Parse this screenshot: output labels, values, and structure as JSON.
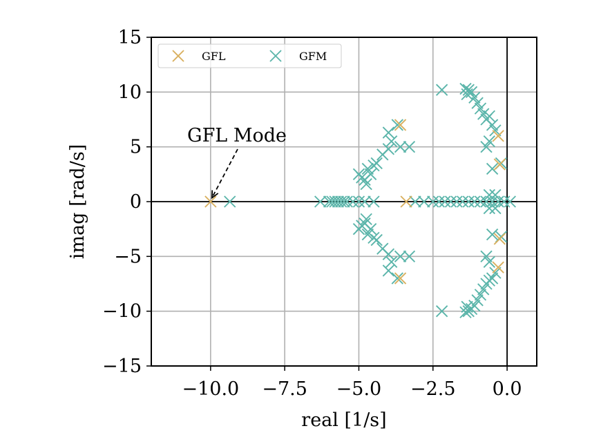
{
  "chart_data": {
    "type": "scatter",
    "xlabel": "real [1/s]",
    "ylabel": "imag [rad/s]",
    "xlim": [
      -12,
      1
    ],
    "ylim": [
      -15,
      15
    ],
    "xticks": [
      -10.0,
      -7.5,
      -5.0,
      -2.5,
      0.0
    ],
    "xtick_labels": [
      "−10.0",
      "−7.5",
      "−5.0",
      "−2.5",
      "0.0"
    ],
    "yticks": [
      15,
      10,
      5,
      0,
      -5,
      -10,
      -15
    ],
    "ytick_labels": [
      "15",
      "10",
      "5",
      "0",
      "−5",
      "−10",
      "−15"
    ],
    "grid": true,
    "legend_position": "top-left",
    "legend_columns": 2,
    "marker": "x",
    "series": [
      {
        "name": "GFL",
        "color": "#D9B05F",
        "points": [
          [
            -10.0,
            0.0
          ],
          [
            -3.6,
            7.0
          ],
          [
            -3.6,
            -7.0
          ],
          [
            -3.4,
            0.0
          ],
          [
            -0.25,
            3.4
          ],
          [
            -0.25,
            -3.4
          ],
          [
            -0.3,
            6.0
          ],
          [
            -0.3,
            -6.0
          ]
        ]
      },
      {
        "name": "GFM",
        "color": "#5BB5AA",
        "points": [
          [
            -9.35,
            0.0
          ],
          [
            -6.3,
            0.0
          ],
          [
            -6.0,
            0.0
          ],
          [
            -5.9,
            0.0
          ],
          [
            -5.8,
            0.0
          ],
          [
            -5.7,
            0.0
          ],
          [
            -5.6,
            0.0
          ],
          [
            -5.5,
            0.0
          ],
          [
            -5.4,
            0.0
          ],
          [
            -5.2,
            0.0
          ],
          [
            -5.0,
            0.0
          ],
          [
            -4.8,
            0.0
          ],
          [
            -4.5,
            0.0
          ],
          [
            -5.0,
            2.5
          ],
          [
            -4.9,
            2.2
          ],
          [
            -4.8,
            2.0
          ],
          [
            -4.75,
            1.6
          ],
          [
            -4.7,
            3.0
          ],
          [
            -4.6,
            2.5
          ],
          [
            -4.5,
            3.3
          ],
          [
            -4.4,
            3.5
          ],
          [
            -5.0,
            -2.5
          ],
          [
            -4.9,
            -2.2
          ],
          [
            -4.8,
            -2.0
          ],
          [
            -4.75,
            -1.6
          ],
          [
            -4.7,
            -3.0
          ],
          [
            -4.6,
            -2.5
          ],
          [
            -4.5,
            -3.3
          ],
          [
            -4.4,
            -3.5
          ],
          [
            -4.2,
            4.3
          ],
          [
            -4.0,
            4.8
          ],
          [
            -3.9,
            5.5
          ],
          [
            -4.0,
            6.3
          ],
          [
            -3.6,
            5.0
          ],
          [
            -3.3,
            5.0
          ],
          [
            -3.7,
            7.0
          ],
          [
            -4.2,
            -4.3
          ],
          [
            -4.0,
            -4.8
          ],
          [
            -3.9,
            -5.5
          ],
          [
            -4.0,
            -6.3
          ],
          [
            -3.6,
            -5.0
          ],
          [
            -3.3,
            -5.0
          ],
          [
            -3.7,
            -7.0
          ],
          [
            -3.1,
            0.0
          ],
          [
            -2.8,
            0.0
          ],
          [
            -2.5,
            0.0
          ],
          [
            -2.3,
            0.0
          ],
          [
            -2.1,
            0.0
          ],
          [
            -1.9,
            0.0
          ],
          [
            -1.7,
            0.0
          ],
          [
            -1.5,
            0.0
          ],
          [
            -1.3,
            0.0
          ],
          [
            -1.1,
            0.0
          ],
          [
            -0.9,
            0.0
          ],
          [
            -0.7,
            0.0
          ],
          [
            -0.5,
            0.0
          ],
          [
            -0.3,
            0.0
          ],
          [
            -0.1,
            0.0
          ],
          [
            0.1,
            0.0
          ],
          [
            -2.2,
            10.2
          ],
          [
            -1.4,
            10.3
          ],
          [
            -1.3,
            10.2
          ],
          [
            -1.2,
            10.0
          ],
          [
            -1.35,
            9.8
          ],
          [
            -1.1,
            9.5
          ],
          [
            -1.0,
            9.0
          ],
          [
            -0.9,
            8.5
          ],
          [
            -0.8,
            8.0
          ],
          [
            -0.7,
            7.5
          ],
          [
            -0.6,
            7.8
          ],
          [
            -0.5,
            7.0
          ],
          [
            -0.4,
            6.5
          ],
          [
            -0.6,
            5.5
          ],
          [
            -0.7,
            5.0
          ],
          [
            -0.5,
            3.0
          ],
          [
            -0.2,
            3.5
          ],
          [
            -0.6,
            0.6
          ],
          [
            -0.4,
            -0.6
          ],
          [
            -2.2,
            -10.0
          ],
          [
            -1.4,
            -10.1
          ],
          [
            -1.3,
            -10.0
          ],
          [
            -1.2,
            -9.8
          ],
          [
            -1.35,
            -9.6
          ],
          [
            -1.1,
            -9.5
          ],
          [
            -1.0,
            -9.0
          ],
          [
            -0.9,
            -8.5
          ],
          [
            -0.8,
            -8.0
          ],
          [
            -0.7,
            -7.5
          ],
          [
            -0.6,
            -7.2
          ],
          [
            -0.5,
            -7.0
          ],
          [
            -0.4,
            -6.5
          ],
          [
            -0.6,
            -5.5
          ],
          [
            -0.7,
            -5.0
          ],
          [
            -0.5,
            -3.0
          ],
          [
            -0.2,
            -3.2
          ],
          [
            -0.6,
            -0.6
          ],
          [
            -0.4,
            0.6
          ]
        ]
      }
    ],
    "annotation": {
      "text": "GFL Mode",
      "arrow_target": [
        -10.0,
        0.6
      ]
    }
  }
}
